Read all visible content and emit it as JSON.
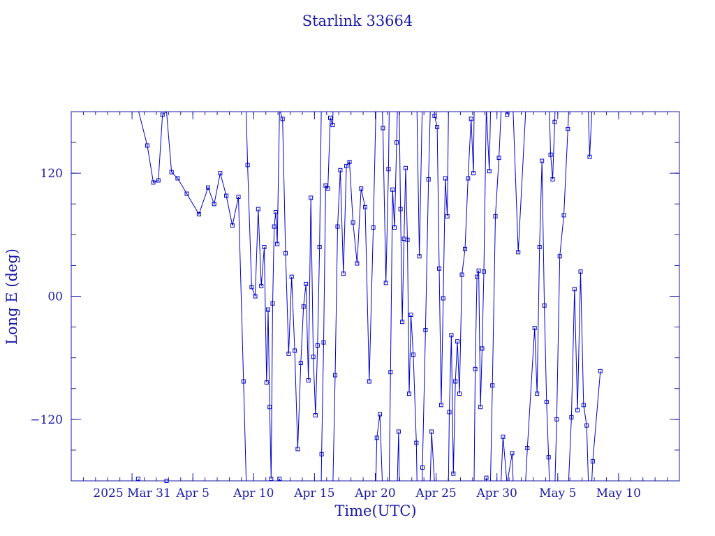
{
  "chart_data": {
    "type": "line",
    "title": "Starlink 33664",
    "xlabel": "Time(UTC)",
    "ylabel": "Long E (deg)",
    "x_unit": "date (UTC)",
    "xlim": [
      "2025-03-26",
      "2025-05-15"
    ],
    "ylim": [
      -180,
      180
    ],
    "yticks": [
      120,
      0,
      -120
    ],
    "ytick_labels": [
      "120",
      "00",
      "−120"
    ],
    "xticks": [
      "2025-03-31",
      "2025-04-05",
      "2025-04-10",
      "2025-04-15",
      "2025-04-20",
      "2025-04-25",
      "2025-04-30",
      "2025-05-05",
      "2025-05-10"
    ],
    "xtick_labels": [
      "2025 Mar 31",
      "Apr  5",
      "Apr 10",
      "Apr 15",
      "Apr 20",
      "Apr 25",
      "Apr 30",
      "May  5",
      "May 10"
    ],
    "grid": false,
    "legend": "none",
    "wraps_at_plus_minus_180": true,
    "colors": {
      "series": "#0000c8",
      "frame": "#1a1aa6",
      "text": "#1a1aa6"
    },
    "series": [
      {
        "marker": "square",
        "points": [
          [
            "2025-03-31",
            -178
          ],
          [
            "2025-04-01",
            147
          ],
          [
            "2025-04-01",
            111
          ],
          [
            "2025-04-02",
            113
          ],
          [
            "2025-04-02",
            177
          ],
          [
            "2025-04-02",
            -180
          ],
          [
            "2025-04-03",
            121
          ],
          [
            "2025-04-03",
            115
          ],
          [
            "2025-04-04",
            100
          ],
          [
            "2025-04-05",
            80
          ],
          [
            "2025-04-06",
            106
          ],
          [
            "2025-04-06",
            90
          ],
          [
            "2025-04-07",
            120
          ],
          [
            "2025-04-07",
            98
          ],
          [
            "2025-04-08",
            69
          ],
          [
            "2025-04-08",
            97
          ],
          [
            "2025-04-09",
            -83
          ],
          [
            "2025-04-09",
            128
          ],
          [
            "2025-04-09",
            9
          ],
          [
            "2025-04-10",
            0
          ],
          [
            "2025-04-10",
            85
          ],
          [
            "2025-04-10",
            10
          ],
          [
            "2025-04-10",
            48
          ],
          [
            "2025-04-11",
            -84
          ],
          [
            "2025-04-11",
            -13
          ],
          [
            "2025-04-11",
            -108
          ],
          [
            "2025-04-11",
            -178
          ],
          [
            "2025-04-11",
            -7
          ],
          [
            "2025-04-11",
            68
          ],
          [
            "2025-04-11",
            82
          ],
          [
            "2025-04-11",
            51
          ],
          [
            "2025-04-12",
            -178
          ],
          [
            "2025-04-12",
            173
          ],
          [
            "2025-04-12",
            42
          ],
          [
            "2025-04-12",
            -56
          ],
          [
            "2025-04-13",
            19
          ],
          [
            "2025-04-13",
            -53
          ],
          [
            "2025-04-13",
            -149
          ],
          [
            "2025-04-13",
            -65
          ],
          [
            "2025-04-14",
            -10
          ],
          [
            "2025-04-14",
            12
          ],
          [
            "2025-04-14",
            -82
          ],
          [
            "2025-04-14",
            96
          ],
          [
            "2025-04-14",
            -59
          ],
          [
            "2025-04-15",
            -116
          ],
          [
            "2025-04-15",
            -48
          ],
          [
            "2025-04-15",
            48
          ],
          [
            "2025-04-15",
            -154
          ],
          [
            "2025-04-15",
            -45
          ],
          [
            "2025-04-15",
            108
          ],
          [
            "2025-04-16",
            105
          ],
          [
            "2025-04-16",
            174
          ],
          [
            "2025-04-16",
            167
          ],
          [
            "2025-04-16",
            -77
          ],
          [
            "2025-04-16",
            68
          ],
          [
            "2025-04-17",
            123
          ],
          [
            "2025-04-17",
            22
          ],
          [
            "2025-04-17",
            127
          ],
          [
            "2025-04-17",
            131
          ],
          [
            "2025-04-18",
            72
          ],
          [
            "2025-04-18",
            32
          ],
          [
            "2025-04-18",
            105
          ],
          [
            "2025-04-19",
            87
          ],
          [
            "2025-04-19",
            -83
          ],
          [
            "2025-04-19",
            67
          ],
          [
            "2025-04-20",
            -138
          ],
          [
            "2025-04-20",
            -115
          ],
          [
            "2025-04-20",
            164
          ],
          [
            "2025-04-20",
            13
          ],
          [
            "2025-04-21",
            124
          ],
          [
            "2025-04-21",
            -74
          ],
          [
            "2025-04-21",
            104
          ],
          [
            "2025-04-21",
            67
          ],
          [
            "2025-04-21",
            150
          ],
          [
            "2025-04-21",
            -132
          ],
          [
            "2025-04-22",
            85
          ],
          [
            "2025-04-22",
            -25
          ],
          [
            "2025-04-22",
            56
          ],
          [
            "2025-04-22",
            125
          ],
          [
            "2025-04-22",
            55
          ],
          [
            "2025-04-22",
            -95
          ],
          [
            "2025-04-22",
            -18
          ],
          [
            "2025-04-23",
            -57
          ],
          [
            "2025-04-23",
            -143
          ],
          [
            "2025-04-23",
            39
          ],
          [
            "2025-04-23",
            -167
          ],
          [
            "2025-04-24",
            -33
          ],
          [
            "2025-04-24",
            114
          ],
          [
            "2025-04-24",
            -132
          ],
          [
            "2025-04-24",
            176
          ],
          [
            "2025-04-25",
            165
          ],
          [
            "2025-04-25",
            27
          ],
          [
            "2025-04-25",
            -106
          ],
          [
            "2025-04-25",
            -2
          ],
          [
            "2025-04-25",
            115
          ],
          [
            "2025-04-25",
            78
          ],
          [
            "2025-04-26",
            -113
          ],
          [
            "2025-04-26",
            -38
          ],
          [
            "2025-04-26",
            -173
          ],
          [
            "2025-04-26",
            -83
          ],
          [
            "2025-04-26",
            -44
          ],
          [
            "2025-04-26",
            -95
          ],
          [
            "2025-04-27",
            21
          ],
          [
            "2025-04-27",
            46
          ],
          [
            "2025-04-27",
            115
          ],
          [
            "2025-04-27",
            173
          ],
          [
            "2025-04-28",
            120
          ],
          [
            "2025-04-28",
            -71
          ],
          [
            "2025-04-28",
            19
          ],
          [
            "2025-04-28",
            25
          ],
          [
            "2025-04-28",
            -108
          ],
          [
            "2025-04-28",
            -51
          ],
          [
            "2025-04-28",
            24
          ],
          [
            "2025-04-29",
            -177
          ],
          [
            "2025-04-29",
            122
          ],
          [
            "2025-04-29",
            -87
          ],
          [
            "2025-04-29",
            78
          ],
          [
            "2025-04-30",
            135
          ],
          [
            "2025-04-30",
            -137
          ],
          [
            "2025-04-30",
            177
          ],
          [
            "2025-05-01",
            -153
          ],
          [
            "2025-05-01",
            43
          ],
          [
            "2025-05-02",
            -148
          ],
          [
            "2025-05-03",
            -31
          ],
          [
            "2025-05-03",
            -95
          ],
          [
            "2025-05-03",
            48
          ],
          [
            "2025-05-03",
            132
          ],
          [
            "2025-05-03",
            -9
          ],
          [
            "2025-05-04",
            -103
          ],
          [
            "2025-05-04",
            -157
          ],
          [
            "2025-05-04",
            138
          ],
          [
            "2025-05-04",
            114
          ],
          [
            "2025-05-04",
            170
          ],
          [
            "2025-05-04",
            -120
          ],
          [
            "2025-05-05",
            39
          ],
          [
            "2025-05-05",
            79
          ],
          [
            "2025-05-05",
            163
          ],
          [
            "2025-05-06",
            -118
          ],
          [
            "2025-05-06",
            7
          ],
          [
            "2025-05-06",
            -111
          ],
          [
            "2025-05-06",
            24
          ],
          [
            "2025-05-07",
            -106
          ],
          [
            "2025-05-07",
            -126
          ],
          [
            "2025-05-07",
            136
          ],
          [
            "2025-05-07",
            -161
          ],
          [
            "2025-05-08",
            -73
          ]
        ]
      }
    ]
  }
}
